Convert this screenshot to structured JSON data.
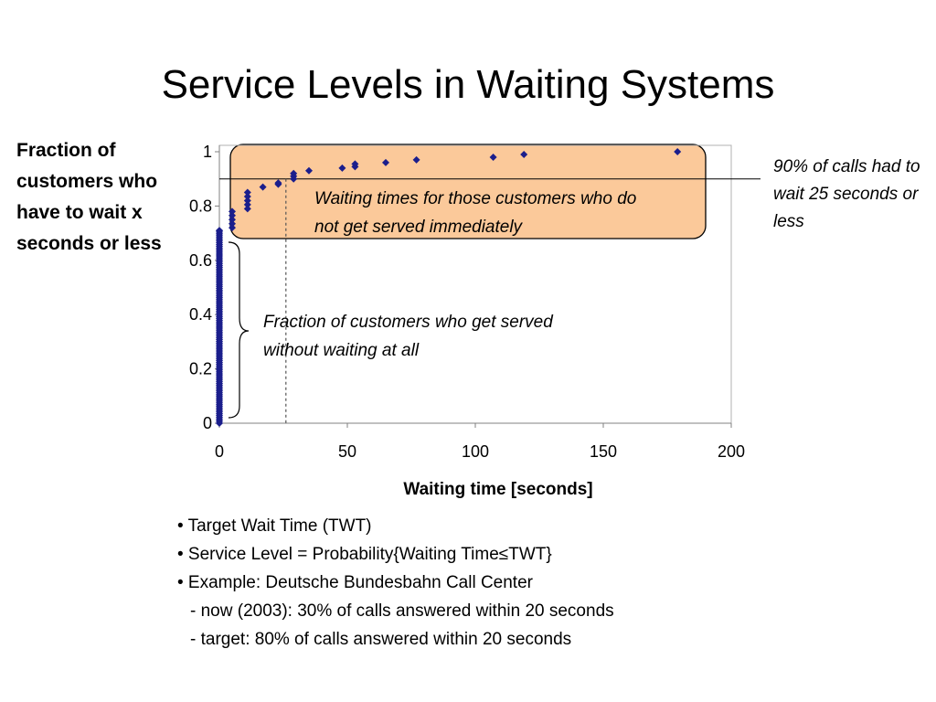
{
  "slide": {
    "title": "Service Levels in Waiting Systems"
  },
  "annotations": {
    "served_immediately": "Fraction of customers who get served without waiting at all",
    "waiting_customers": "Waiting times for those customers who do not get served immediately",
    "ninety_percent": "90% of calls had to wait 25 seconds or less"
  },
  "bullets": [
    "• Target Wait Time (TWT)",
    "• Service Level = Probability{Waiting Time≤TWT}",
    "• Example: Deutsche Bundesbahn Call Center",
    "- now (2003): 30% of calls answered within 20 seconds",
    "- target: 80% of calls answered within 20 seconds"
  ],
  "colors": {
    "marker": "#1b1e8c",
    "highlight_fill": "#fbc99a",
    "highlight_stroke": "#000000"
  },
  "chart_data": {
    "type": "scatter",
    "title": "",
    "xlabel": "Waiting time [seconds]",
    "ylabel": "Fraction of customers who have to wait x seconds or less",
    "xlim": [
      0,
      200
    ],
    "ylim": [
      0,
      1
    ],
    "xticks": [
      0,
      50,
      100,
      150,
      200
    ],
    "yticks": [
      0,
      0.2,
      0.4,
      0.6,
      0.8,
      1
    ],
    "ytick_labels": [
      "0",
      "0.2",
      "0.4",
      "0.6",
      "0.8",
      "1"
    ],
    "grid": false,
    "zero_wait_fraction": 0.71,
    "points": [
      {
        "x": 0,
        "y": 0.71
      },
      {
        "x": 5,
        "y": 0.72
      },
      {
        "x": 5,
        "y": 0.735
      },
      {
        "x": 5,
        "y": 0.75
      },
      {
        "x": 5,
        "y": 0.765
      },
      {
        "x": 5,
        "y": 0.78
      },
      {
        "x": 11,
        "y": 0.79
      },
      {
        "x": 11,
        "y": 0.805
      },
      {
        "x": 11,
        "y": 0.82
      },
      {
        "x": 11,
        "y": 0.835
      },
      {
        "x": 11,
        "y": 0.85
      },
      {
        "x": 17,
        "y": 0.87
      },
      {
        "x": 23,
        "y": 0.88
      },
      {
        "x": 23,
        "y": 0.885
      },
      {
        "x": 29,
        "y": 0.9
      },
      {
        "x": 29,
        "y": 0.91
      },
      {
        "x": 29,
        "y": 0.92
      },
      {
        "x": 35,
        "y": 0.93
      },
      {
        "x": 48,
        "y": 0.94
      },
      {
        "x": 53,
        "y": 0.945
      },
      {
        "x": 53,
        "y": 0.955
      },
      {
        "x": 65,
        "y": 0.96
      },
      {
        "x": 77,
        "y": 0.97
      },
      {
        "x": 107,
        "y": 0.98
      },
      {
        "x": 119,
        "y": 0.99
      },
      {
        "x": 179,
        "y": 1.0
      }
    ],
    "reference_line_y": 0.9,
    "reference_line_x": 26
  }
}
